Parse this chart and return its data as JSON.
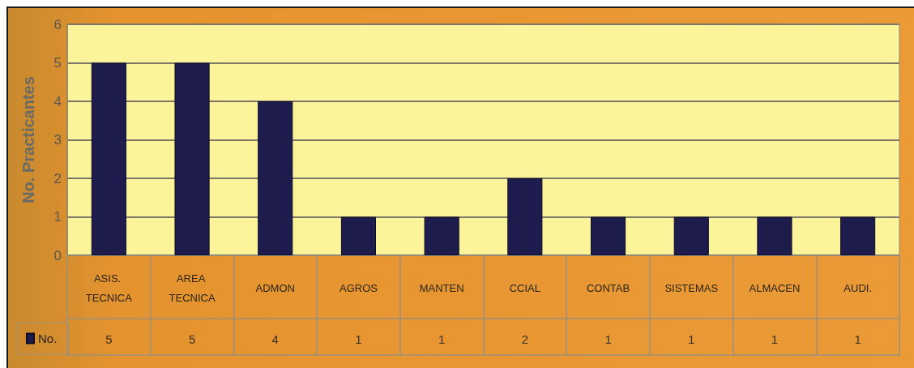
{
  "chart_data": {
    "type": "bar",
    "ylabel": "No. Practicantes",
    "categories": [
      "ASIS. TECNICA",
      "AREA TECNICA",
      "ADMON",
      "AGROS",
      "MANTEN",
      "CCIAL",
      "CONTAB",
      "SISTEMAS",
      "ALMACEN",
      "AUDI."
    ],
    "series": [
      {
        "name": "No.",
        "color": "#1e1c4c",
        "values": [
          5,
          5,
          4,
          1,
          1,
          2,
          1,
          1,
          1,
          1
        ]
      }
    ],
    "ylim": [
      0,
      6
    ],
    "yticks": [
      0,
      1,
      2,
      3,
      4,
      5,
      6
    ],
    "grid": "y",
    "legend": "bottom left",
    "data_labels": true
  }
}
